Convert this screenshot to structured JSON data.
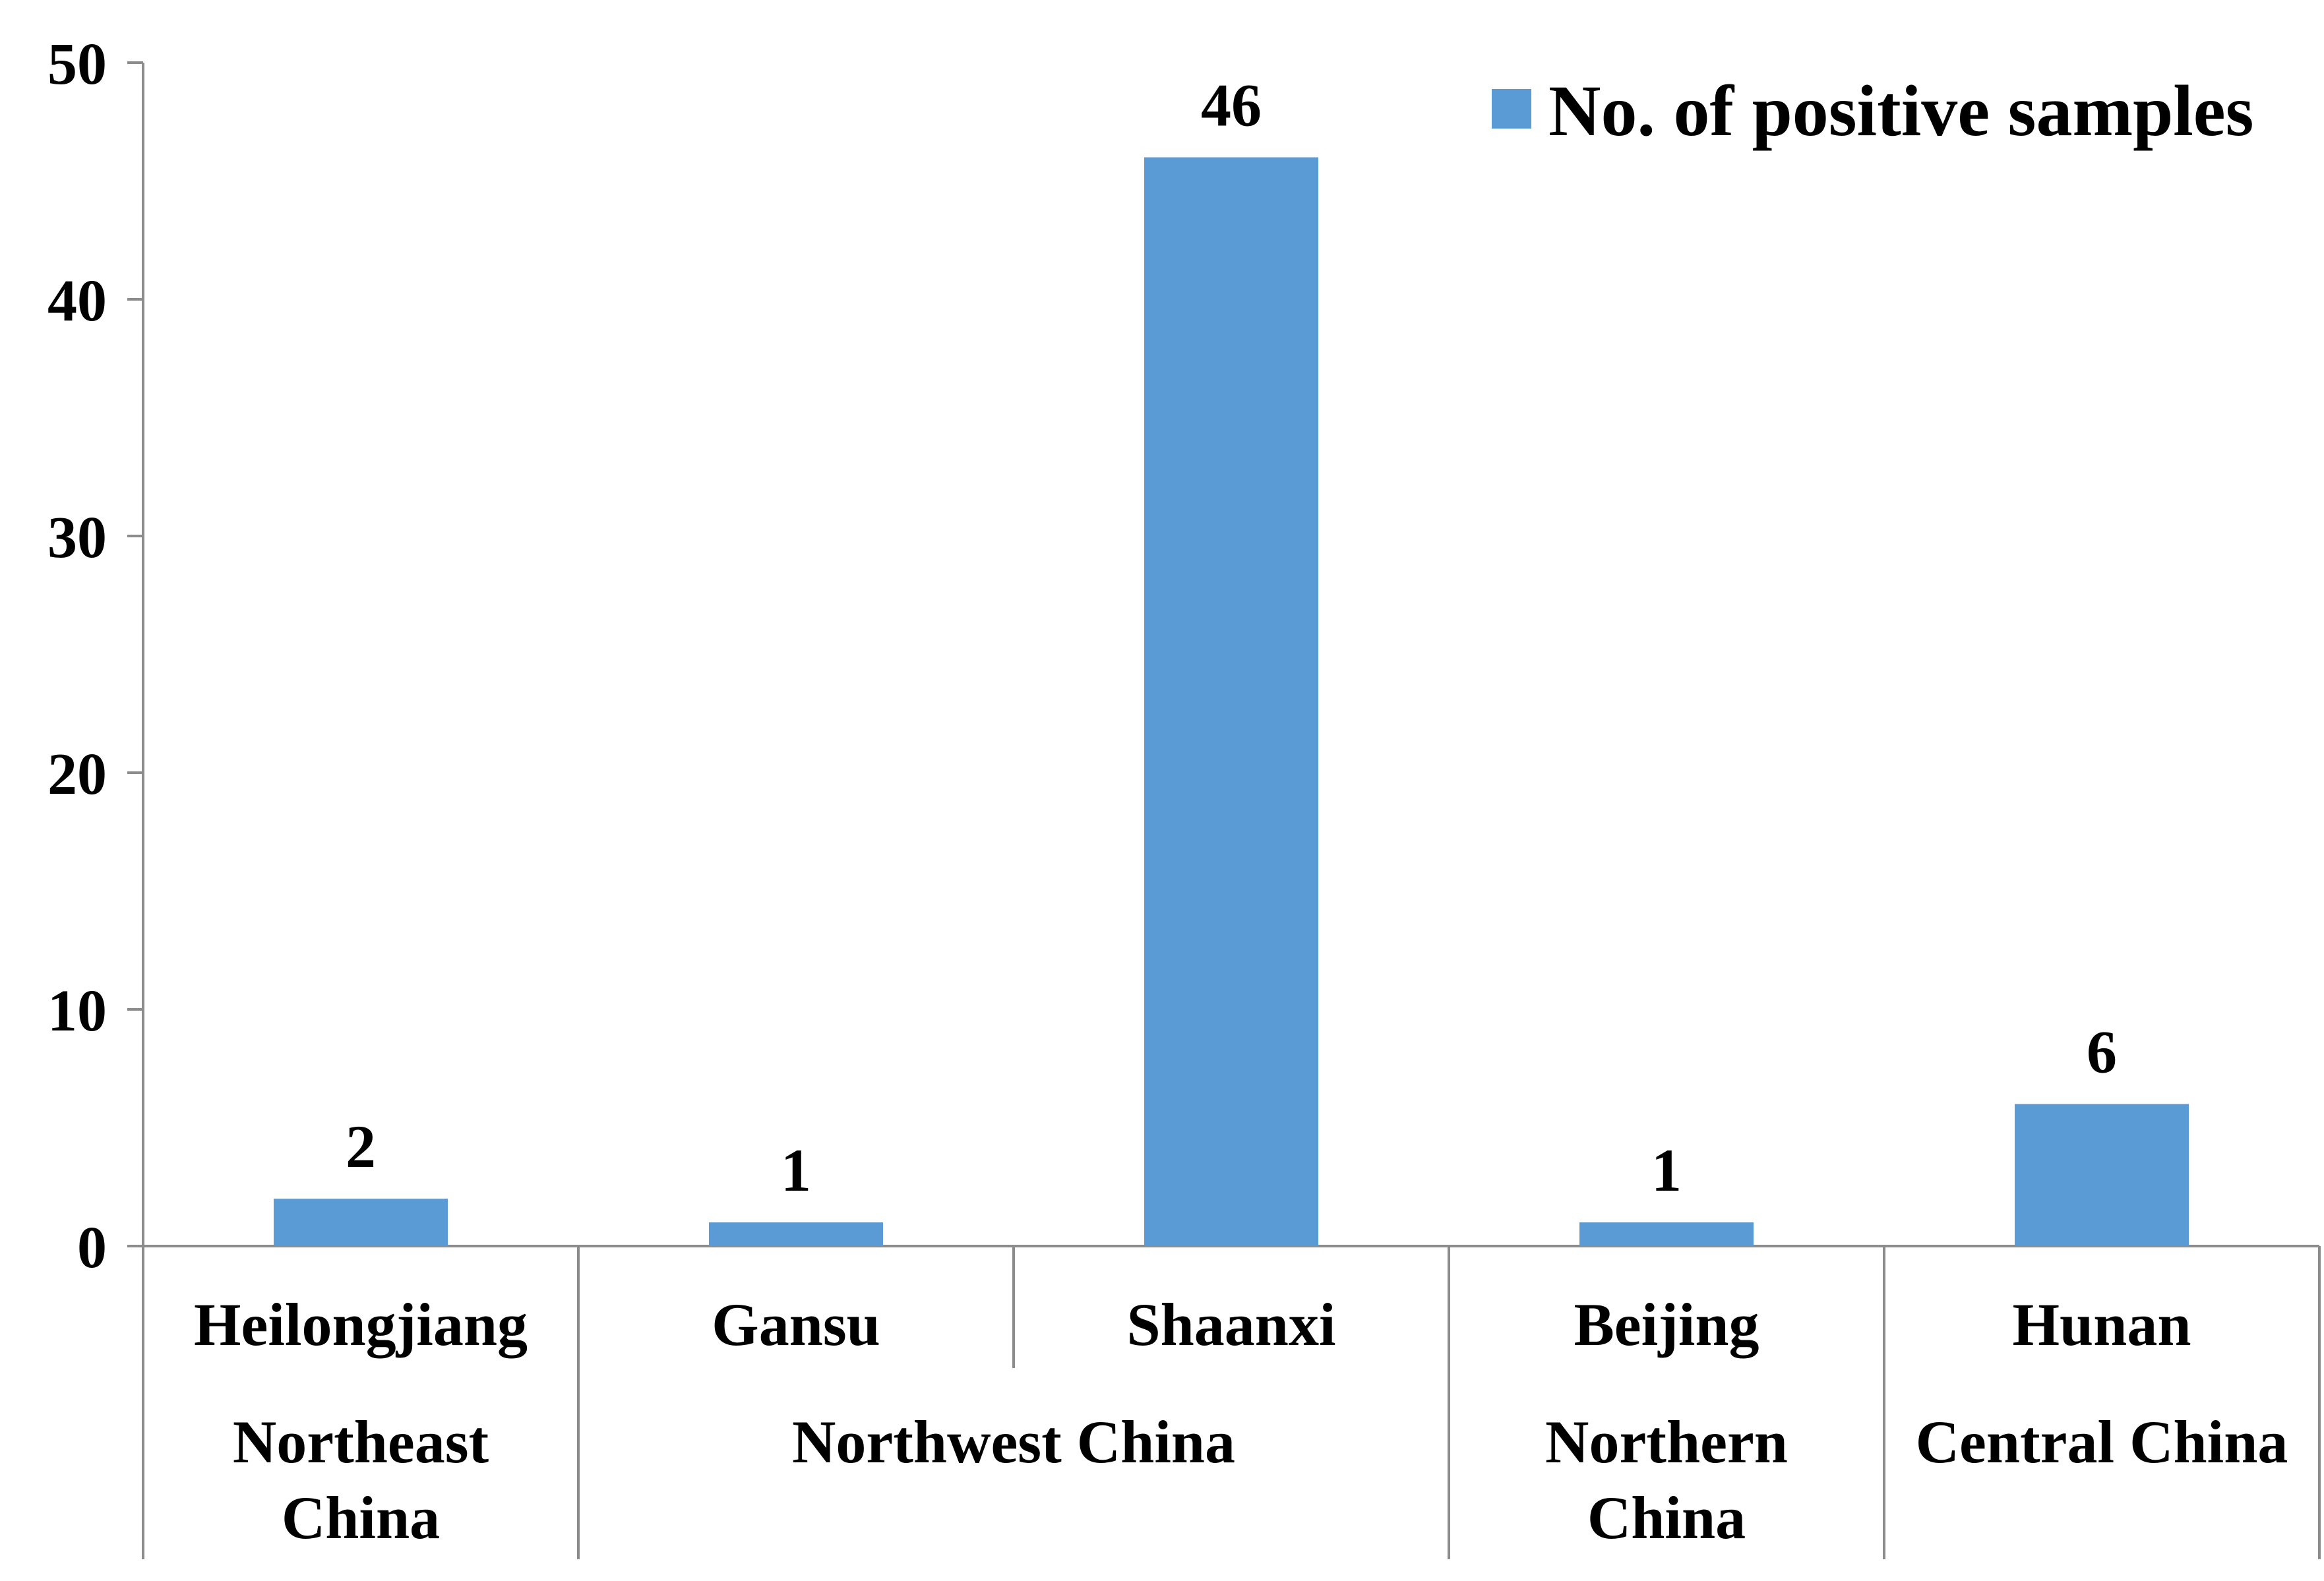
{
  "chart_data": {
    "type": "bar",
    "categories": [
      "Heilongjiang",
      "Gansu",
      "Shaanxi",
      "Beijing",
      "Hunan"
    ],
    "groups": [
      {
        "label_lines": [
          "Northeast",
          "China"
        ],
        "categories": [
          "Heilongjiang"
        ]
      },
      {
        "label_lines": [
          "Northwest China"
        ],
        "categories": [
          "Gansu",
          "Shaanxi"
        ]
      },
      {
        "label_lines": [
          "Northern",
          "China"
        ],
        "categories": [
          "Beijing"
        ]
      },
      {
        "label_lines": [
          "Central China"
        ],
        "categories": [
          "Hunan"
        ]
      }
    ],
    "series": [
      {
        "name": "No. of positive samples",
        "values": [
          2,
          1,
          46,
          1,
          6
        ],
        "color": "#5B9BD5"
      }
    ],
    "data_labels": [
      "2",
      "1",
      "46",
      "1",
      "6"
    ],
    "yticks": [
      "0",
      "10",
      "20",
      "30",
      "40",
      "50"
    ],
    "ylim": [
      0,
      50
    ],
    "title": "",
    "xlabel": "",
    "ylabel": "",
    "grid": false,
    "legend_position": "top-right"
  },
  "colors": {
    "bar": "#5B9BD5",
    "axis": "#8C8C8C",
    "text": "#000000"
  }
}
